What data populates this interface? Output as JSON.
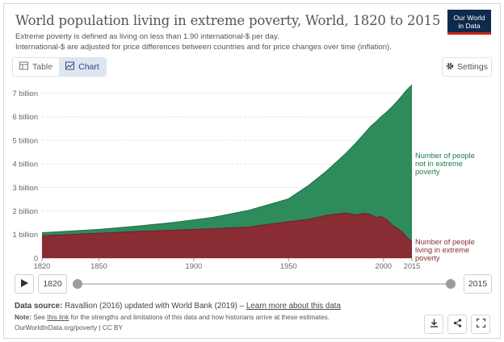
{
  "header": {
    "title": "World population living in extreme poverty, World, 1820 to 2015",
    "subtitle_line1": "Extreme poverty is defined as living on less than 1.90 international-$ per day.",
    "subtitle_line2": "International-$ are adjusted for price differences between countries and for price changes over time (inflation).",
    "logo_line1": "Our World",
    "logo_line2": "in Data"
  },
  "tabs": [
    {
      "label": "Table",
      "icon": "table-icon"
    },
    {
      "label": "Chart",
      "icon": "chart-icon"
    }
  ],
  "settings_label": "Settings",
  "timeline": {
    "start_year": "1820",
    "end_year": "2015"
  },
  "footer": {
    "source_prefix": "Data source:",
    "source_text": "Ravallion (2016) updated with World Bank (2019) –",
    "source_link": "Learn more about this data",
    "note_prefix": "Note:",
    "note_text1": "See",
    "note_link": "this link",
    "note_text2": "for the strengths and limitations of this data and how historians arrive at these estimates.",
    "url": "OurWorldInData.org/poverty | CC BY"
  },
  "colors": {
    "not_poor": "#2e8b5c",
    "poor": "#8a2c33",
    "not_poor_label": "#1f7a4a",
    "poor_label": "#8a2c33"
  },
  "chart_data": {
    "type": "area",
    "stacked": true,
    "x": [
      1820,
      1850,
      1870,
      1890,
      1910,
      1929,
      1950,
      1960,
      1970,
      1980,
      1985,
      1990,
      1993,
      1996,
      1999,
      2002,
      2005,
      2008,
      2010,
      2012,
      2015
    ],
    "series": [
      {
        "name": "Number of people living in extreme poverty",
        "values": [
          0.95,
          1.06,
          1.13,
          1.19,
          1.25,
          1.32,
          1.55,
          1.64,
          1.82,
          1.92,
          1.84,
          1.9,
          1.86,
          1.73,
          1.76,
          1.62,
          1.38,
          1.22,
          1.1,
          0.9,
          0.7
        ]
      },
      {
        "name": "Number of people not in extreme poverty",
        "values": [
          0.13,
          0.16,
          0.23,
          0.33,
          0.48,
          0.71,
          0.97,
          1.42,
          1.88,
          2.52,
          3.01,
          3.4,
          3.72,
          4.06,
          4.27,
          4.61,
          5.09,
          5.51,
          5.82,
          6.22,
          6.66
        ]
      }
    ],
    "series_labels": {
      "not_poor": [
        "Number of people",
        "not in extreme",
        "poverty"
      ],
      "poor": [
        "Number of people",
        "living in extreme",
        "poverty"
      ]
    },
    "yticks": [
      "0",
      "1 billion",
      "2 billion",
      "3 billion",
      "4 billion",
      "5 billion",
      "6 billion",
      "7 billion"
    ],
    "xticks": [
      "1820",
      "1850",
      "1900",
      "1950",
      "2000",
      "2015"
    ],
    "xlim": [
      1820,
      2015
    ],
    "ylim": [
      0,
      7.3
    ],
    "grid": true
  }
}
